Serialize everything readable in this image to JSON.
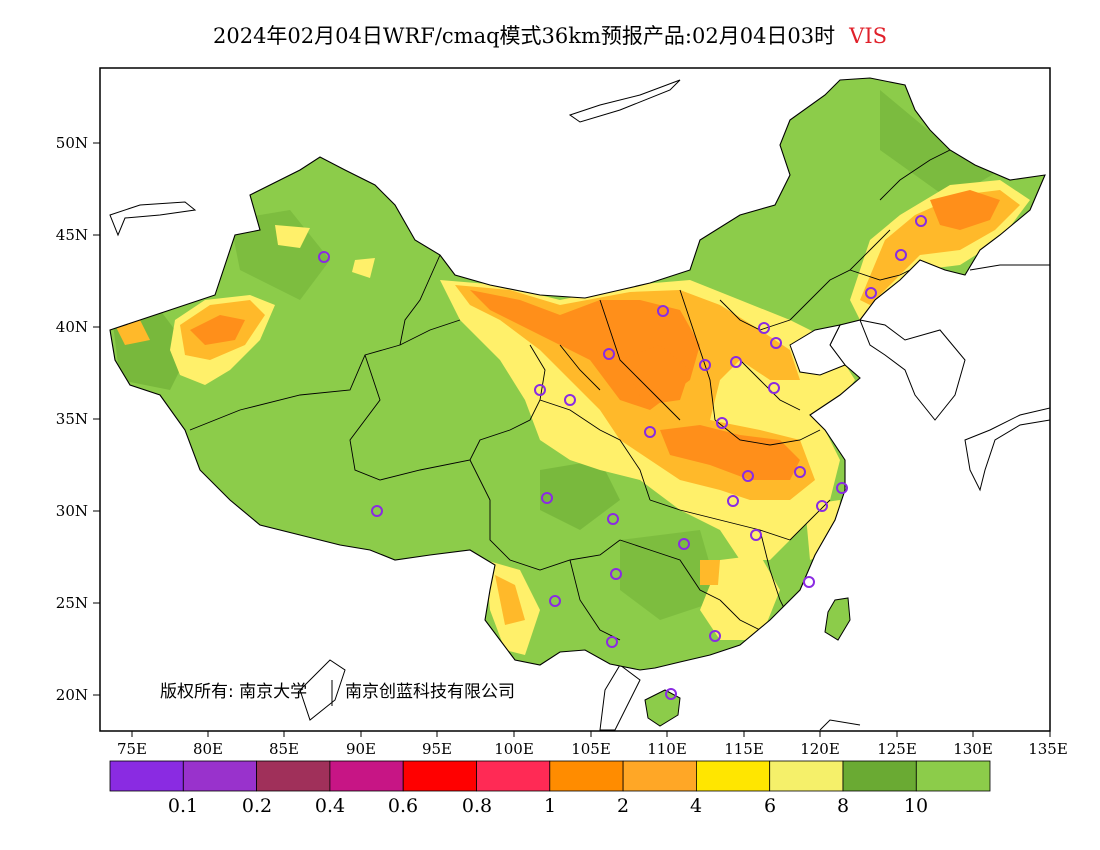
{
  "title": {
    "main": "2024年02月04日WRF/cmaq模式36km预报产品:02月04日03时",
    "variable": "VIS"
  },
  "map": {
    "lat_ticks": [
      "20N",
      "25N",
      "30N",
      "35N",
      "40N",
      "45N",
      "50N"
    ],
    "lon_ticks": [
      "75E",
      "80E",
      "85E",
      "90E",
      "95E",
      "100E",
      "105E",
      "110E",
      "115E",
      "120E",
      "125E",
      "130E",
      "135E"
    ],
    "copyright_left": "版权所有: 南京大学",
    "copyright_right": "南京创蓝科技有限公司"
  },
  "colorbar": {
    "colors": [
      "#8a2be2",
      "#9932cc",
      "#a0305a",
      "#c71585",
      "#ff0000",
      "#ff2a55",
      "#ff8c00",
      "#ffa726",
      "#ffe600",
      "#f5f06a",
      "#6aaa33",
      "#8ccc4a"
    ],
    "labels": [
      "0.1",
      "0.2",
      "0.4",
      "0.6",
      "0.8",
      "1",
      "2",
      "4",
      "6",
      "8",
      "10"
    ]
  },
  "stations_color": "#8a2be2"
}
